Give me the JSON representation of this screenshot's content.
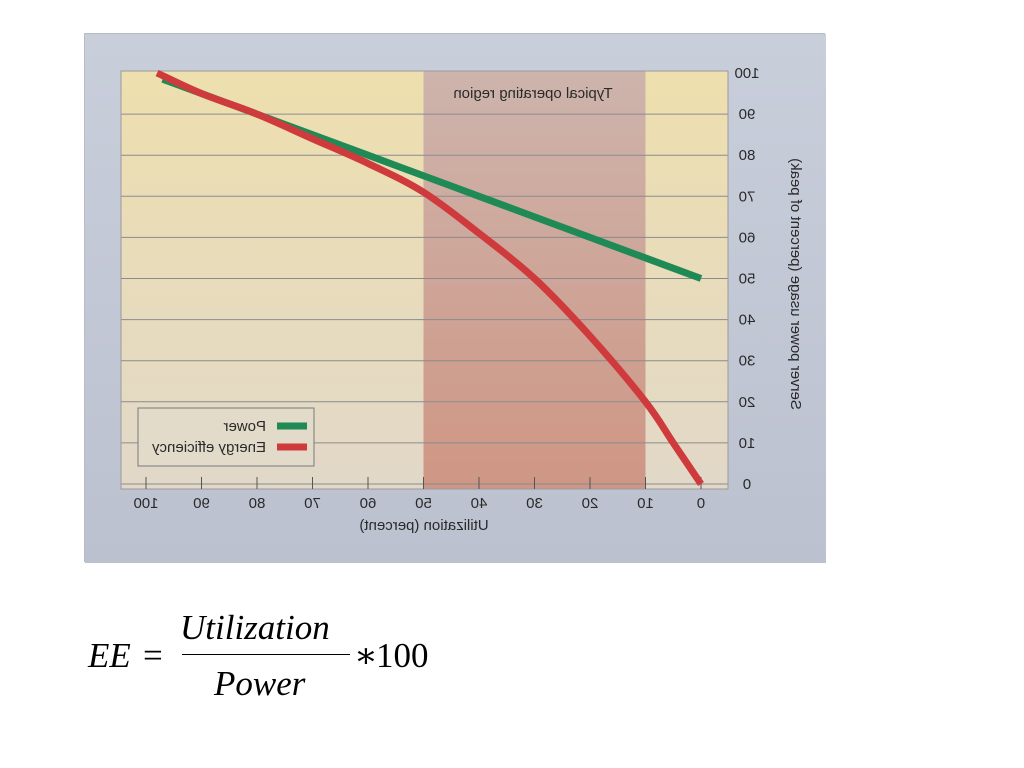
{
  "chart_data": {
    "type": "line",
    "title": "",
    "xlabel": "Utilization (percent)",
    "ylabel": "Server power usage (percent of peak)",
    "x_ticks": [
      100,
      90,
      80,
      70,
      60,
      50,
      40,
      30,
      20,
      10,
      0
    ],
    "y_ticks": [
      100,
      90,
      80,
      70,
      60,
      50,
      40,
      30,
      20,
      10,
      0
    ],
    "xlim": [
      0,
      100
    ],
    "ylim": [
      0,
      100
    ],
    "x_reversed": true,
    "mirrored": true,
    "grid": true,
    "region": {
      "label": "Typical operating region",
      "x_range": [
        10,
        50
      ]
    },
    "legend": {
      "placement": "bottom-left",
      "entries": [
        {
          "label": "Power",
          "color": "#1f8a55"
        },
        {
          "label": "Energy efficiency",
          "color": "#cf3b3d"
        }
      ]
    },
    "series": [
      {
        "name": "Power",
        "color": "#1f8a55",
        "x": [
          0,
          10,
          20,
          30,
          40,
          50,
          60,
          70,
          80,
          90,
          97
        ],
        "y": [
          50,
          55,
          60,
          65,
          70,
          75,
          80,
          85,
          90,
          95,
          98.5
        ]
      },
      {
        "name": "Energy efficiency",
        "color": "#cf3b3d",
        "x": [
          0,
          5,
          10,
          20,
          30,
          40,
          50,
          60,
          70,
          80,
          90,
          98
        ],
        "y": [
          0,
          10,
          20,
          36,
          50,
          61,
          71,
          78,
          84,
          90,
          95,
          100
        ]
      }
    ]
  },
  "colors": {
    "frame_bg": "#c3c8d5",
    "plot_bg_top": "#eedfae",
    "plot_bg_bottom": "#e2d8c8",
    "region_top": "#cdb4ac",
    "region_bottom": "#cf9684",
    "grid": "#8a8b8f"
  },
  "formula": {
    "lhs": "EE",
    "equals": "=",
    "numerator": "Utilization",
    "denominator": "Power",
    "operator": "∗",
    "factor": "100"
  }
}
